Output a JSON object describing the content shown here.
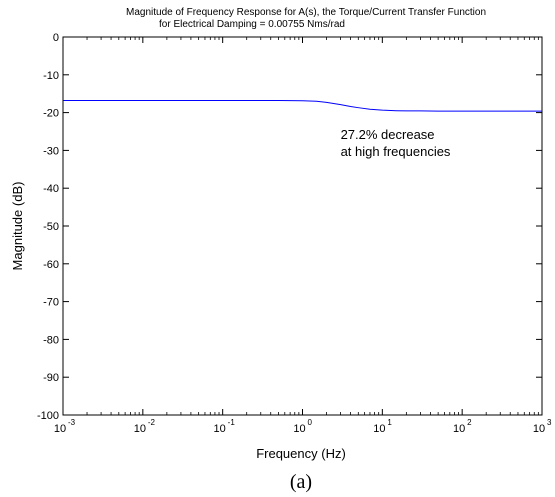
{
  "chart_data": {
    "type": "line",
    "title_line1": "Magnitude of Frequency Response for A(s), the Torque/Current Transfer Function",
    "title_line2": "for Electrical Damping = 0.00755 Nms/rad",
    "xlabel": "Frequency (Hz)",
    "ylabel": "Magnitude (dB)",
    "x_scale": "log",
    "xlim": [
      0.001,
      1000
    ],
    "ylim": [
      -100,
      0
    ],
    "x_ticks": [
      0.001,
      0.01,
      0.1,
      1,
      10,
      100,
      1000
    ],
    "x_tick_labels": [
      {
        "base": "10",
        "exp": "-3"
      },
      {
        "base": "10",
        "exp": "-2"
      },
      {
        "base": "10",
        "exp": "-1"
      },
      {
        "base": "10",
        "exp": "0"
      },
      {
        "base": "10",
        "exp": "1"
      },
      {
        "base": "10",
        "exp": "2"
      },
      {
        "base": "10",
        "exp": "3"
      }
    ],
    "y_ticks": [
      0,
      -10,
      -20,
      -30,
      -40,
      -50,
      -60,
      -70,
      -80,
      -90,
      -100
    ],
    "y_tick_labels": [
      "0",
      "-10",
      "-20",
      "-30",
      "-40",
      "-50",
      "-60",
      "-70",
      "-80",
      "-90",
      "-100"
    ],
    "grid": false,
    "series": [
      {
        "color": "#0000ff",
        "x": [
          0.001,
          0.01,
          0.1,
          0.5,
          1,
          1.5,
          2,
          3,
          4,
          5,
          7,
          10,
          15,
          20,
          30,
          50,
          100,
          1000
        ],
        "y": [
          -16.8,
          -16.8,
          -16.8,
          -16.8,
          -16.85,
          -17.0,
          -17.3,
          -17.9,
          -18.4,
          -18.7,
          -19.1,
          -19.35,
          -19.5,
          -19.55,
          -19.55,
          -19.6,
          -19.6,
          -19.6
        ]
      }
    ],
    "annotation": {
      "line1": "27.2% decrease",
      "line2": "at high frequencies",
      "x": 3,
      "y": -27
    }
  },
  "caption": "(a)"
}
